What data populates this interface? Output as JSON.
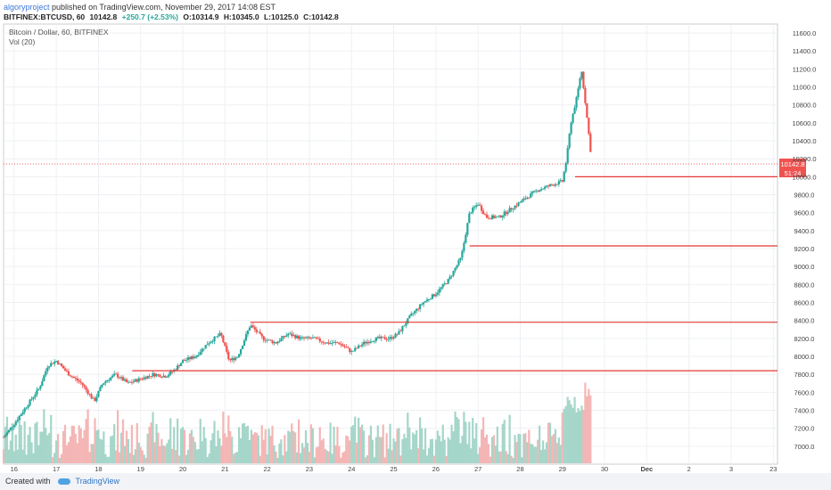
{
  "header": {
    "author": "algoryproject",
    "published": " published on TradingView.com, November 29, 2017 14:08 EST",
    "symbol": "BITFINEX:BTCUSD, 60",
    "last": "10142.8",
    "change": "+250.7 (+2.53%)",
    "open": "O:10314.9",
    "high": "H:10345.0",
    "low": "L:10125.0",
    "close": "C:10142.8"
  },
  "footer": {
    "created_with": "Created with",
    "brand": "TradingView"
  },
  "colors": {
    "up": "#26a69a",
    "down": "#ef5350",
    "line": "#e53935",
    "grid": "#eef0f3",
    "vol_up": "#a5d6c9",
    "vol_down": "#f4b6b5",
    "ma": "#f6a35b"
  },
  "chart_data": {
    "type": "candlestick",
    "title": "Bitcoin / Dollar, 60, BITFINEX",
    "indicator": "Vol (20)",
    "ylim": [
      6800,
      11700
    ],
    "yticks": [
      "11600.0",
      "11400.0",
      "11200.0",
      "11000.0",
      "10800.0",
      "10600.0",
      "10400.0",
      "10200.0",
      "10000.0",
      "9800.0",
      "9600.0",
      "9400.0",
      "9200.0",
      "9000.0",
      "8800.0",
      "8600.0",
      "8400.0",
      "8200.0",
      "8000.0",
      "7800.0",
      "7600.0",
      "7400.0",
      "7200.0",
      "7000.0"
    ],
    "xticks": [
      {
        "label": "16",
        "day": 16
      },
      {
        "label": "17",
        "day": 17
      },
      {
        "label": "18",
        "day": 18
      },
      {
        "label": "19",
        "day": 19
      },
      {
        "label": "20",
        "day": 20
      },
      {
        "label": "21",
        "day": 21
      },
      {
        "label": "22",
        "day": 22
      },
      {
        "label": "23",
        "day": 23
      },
      {
        "label": "24",
        "day": 24
      },
      {
        "label": "25",
        "day": 25
      },
      {
        "label": "26",
        "day": 26
      },
      {
        "label": "27",
        "day": 27
      },
      {
        "label": "28",
        "day": 28
      },
      {
        "label": "29",
        "day": 29
      },
      {
        "label": "30",
        "day": 30
      },
      {
        "label": "Dec",
        "day": 31
      },
      {
        "label": "2",
        "day": 32
      },
      {
        "label": "3",
        "day": 33
      },
      {
        "label": "23",
        "day": 34
      }
    ],
    "xlim": [
      15.75,
      34.1
    ],
    "last_price_label": "10142.8",
    "countdown_label": "51:24",
    "last_price": 10142.8,
    "horizontal_lines": [
      {
        "price": 10000,
        "from_day": 29.3
      },
      {
        "price": 9230,
        "from_day": 26.8
      },
      {
        "price": 8380,
        "from_day": 21.6
      },
      {
        "price": 7840,
        "from_day": 18.8
      }
    ],
    "price_path": [
      [
        15.75,
        7100
      ],
      [
        16.0,
        7250
      ],
      [
        16.3,
        7450
      ],
      [
        16.6,
        7650
      ],
      [
        16.8,
        7900
      ],
      [
        17.0,
        7950
      ],
      [
        17.3,
        7800
      ],
      [
        17.6,
        7700
      ],
      [
        17.9,
        7500
      ],
      [
        18.1,
        7700
      ],
      [
        18.4,
        7800
      ],
      [
        18.7,
        7700
      ],
      [
        19.0,
        7750
      ],
      [
        19.3,
        7800
      ],
      [
        19.6,
        7780
      ],
      [
        19.8,
        7850
      ],
      [
        20.0,
        7950
      ],
      [
        20.3,
        8000
      ],
      [
        20.6,
        8150
      ],
      [
        20.9,
        8250
      ],
      [
        21.1,
        7950
      ],
      [
        21.3,
        8000
      ],
      [
        21.6,
        8350
      ],
      [
        21.9,
        8200
      ],
      [
        22.2,
        8150
      ],
      [
        22.5,
        8250
      ],
      [
        22.8,
        8200
      ],
      [
        23.1,
        8200
      ],
      [
        23.4,
        8150
      ],
      [
        23.7,
        8150
      ],
      [
        24.0,
        8050
      ],
      [
        24.3,
        8150
      ],
      [
        24.6,
        8200
      ],
      [
        24.9,
        8200
      ],
      [
        25.1,
        8250
      ],
      [
        25.4,
        8450
      ],
      [
        25.7,
        8600
      ],
      [
        26.0,
        8700
      ],
      [
        26.3,
        8850
      ],
      [
        26.6,
        9100
      ],
      [
        26.8,
        9600
      ],
      [
        27.0,
        9700
      ],
      [
        27.2,
        9550
      ],
      [
        27.5,
        9550
      ],
      [
        27.8,
        9650
      ],
      [
        28.1,
        9750
      ],
      [
        28.4,
        9850
      ],
      [
        28.7,
        9900
      ],
      [
        29.0,
        9950
      ],
      [
        29.1,
        10200
      ],
      [
        29.2,
        10600
      ],
      [
        29.35,
        10900
      ],
      [
        29.45,
        11200
      ],
      [
        29.55,
        10800
      ],
      [
        29.7,
        10150
      ]
    ]
  }
}
